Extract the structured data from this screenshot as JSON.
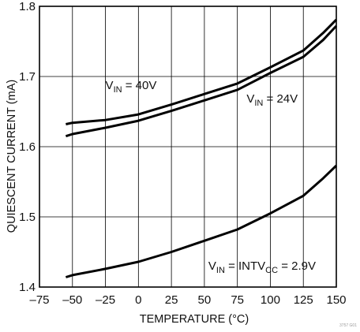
{
  "chart_data": {
    "type": "line",
    "title": "",
    "xlabel": "TEMPERATURE (°C)",
    "ylabel": "QUIESCENT CURRENT (mA)",
    "xlim": [
      -75,
      150
    ],
    "ylim": [
      1.4,
      1.8
    ],
    "xticks": [
      -75,
      -50,
      -25,
      0,
      25,
      50,
      75,
      100,
      125,
      150
    ],
    "yticks": [
      1.4,
      1.5,
      1.6,
      1.7,
      1.8
    ],
    "xtick_labels": [
      "–75",
      "–50",
      "–25",
      "0",
      "25",
      "50",
      "75",
      "100",
      "125",
      "150"
    ],
    "ytick_labels": [
      "1.4",
      "1.5",
      "1.6",
      "1.7",
      "1.8"
    ],
    "grid": true,
    "legend": "none",
    "line_color": "#000000",
    "grid_color": "#000000",
    "series": [
      {
        "x": [
          -55,
          -50,
          -25,
          0,
          25,
          50,
          75,
          100,
          125,
          140,
          150
        ],
        "y": [
          1.632,
          1.634,
          1.638,
          1.646,
          1.66,
          1.675,
          1.69,
          1.713,
          1.737,
          1.762,
          1.781
        ]
      },
      {
        "x": [
          -55,
          -50,
          -25,
          0,
          25,
          50,
          75,
          100,
          125,
          140,
          150
        ],
        "y": [
          1.615,
          1.618,
          1.627,
          1.637,
          1.651,
          1.666,
          1.681,
          1.705,
          1.728,
          1.752,
          1.772
        ]
      },
      {
        "x": [
          -55,
          -50,
          -25,
          0,
          25,
          50,
          75,
          100,
          125,
          140,
          150
        ],
        "y": [
          1.414,
          1.417,
          1.426,
          1.436,
          1.45,
          1.466,
          1.482,
          1.505,
          1.53,
          1.555,
          1.573
        ]
      }
    ],
    "annotations": [
      {
        "main": "V",
        "sub": "IN",
        "rest": " = 40V",
        "x": -25,
        "y": 1.682
      },
      {
        "main": "V",
        "sub": "IN",
        "rest": " = 24V",
        "x": 82,
        "y": 1.663
      },
      {
        "parts": [
          {
            "text": "V",
            "sub": false
          },
          {
            "text": "IN",
            "sub": true
          },
          {
            "text": " = INTV",
            "sub": false
          },
          {
            "text": "CC",
            "sub": true
          },
          {
            "text": " = 2.9V",
            "sub": false
          }
        ],
        "x": 53,
        "y": 1.425
      }
    ],
    "footer_code": "3757 G01"
  }
}
